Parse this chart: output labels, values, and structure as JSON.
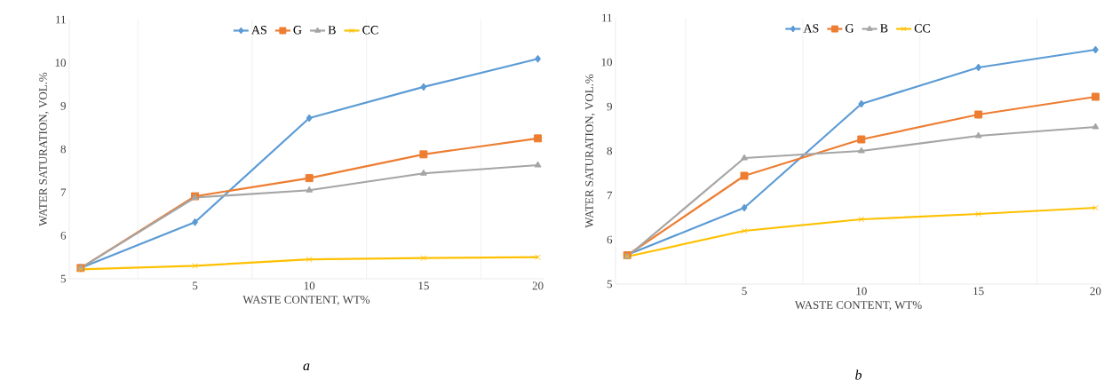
{
  "chart_data": [
    {
      "type": "line",
      "xlabel": "WASTE CONTENT, WT%",
      "ylabel": "WATER SATURATION, VOL.%",
      "categories": [
        null,
        "5",
        "10",
        "15",
        "20"
      ],
      "ylim": [
        5,
        11
      ],
      "yticks": [
        5,
        6,
        7,
        8,
        9,
        10,
        11
      ],
      "grid": "x",
      "legend": "top",
      "annotations": [
        "a"
      ],
      "series": [
        {
          "name": "AS",
          "color": "#5b9bd5",
          "marker": "diamond",
          "values": [
            5.25,
            6.31,
            8.72,
            9.44,
            10.09
          ]
        },
        {
          "name": "G",
          "color": "#ed7d31",
          "marker": "square",
          "values": [
            5.25,
            6.91,
            7.33,
            7.88,
            8.25
          ]
        },
        {
          "name": "B",
          "color": "#a5a5a5",
          "marker": "triangle",
          "values": [
            5.25,
            6.88,
            7.05,
            7.44,
            7.63
          ]
        },
        {
          "name": "CC",
          "color": "#ffc000",
          "marker": "cross",
          "values": [
            5.22,
            5.3,
            5.45,
            5.48,
            5.5
          ]
        }
      ]
    },
    {
      "type": "line",
      "xlabel": "WASTE CONTENT, WT%",
      "ylabel": "WATER SATURATION, VOL.%",
      "categories": [
        null,
        "5",
        "10",
        "15",
        "20"
      ],
      "ylim": [
        5,
        11
      ],
      "yticks": [
        5,
        6,
        7,
        8,
        9,
        10,
        11
      ],
      "grid": "x",
      "legend": "top",
      "annotations": [
        "b"
      ],
      "series": [
        {
          "name": "AS",
          "color": "#5b9bd5",
          "marker": "diamond",
          "values": [
            5.66,
            6.72,
            9.06,
            9.88,
            10.28
          ]
        },
        {
          "name": "G",
          "color": "#ed7d31",
          "marker": "square",
          "values": [
            5.65,
            7.44,
            8.26,
            8.82,
            9.22
          ]
        },
        {
          "name": "B",
          "color": "#a5a5a5",
          "marker": "triangle",
          "values": [
            5.62,
            7.84,
            8.0,
            8.34,
            8.54
          ]
        },
        {
          "name": "CC",
          "color": "#ffc000",
          "marker": "cross",
          "values": [
            5.62,
            6.2,
            6.46,
            6.58,
            6.72
          ]
        }
      ]
    }
  ]
}
